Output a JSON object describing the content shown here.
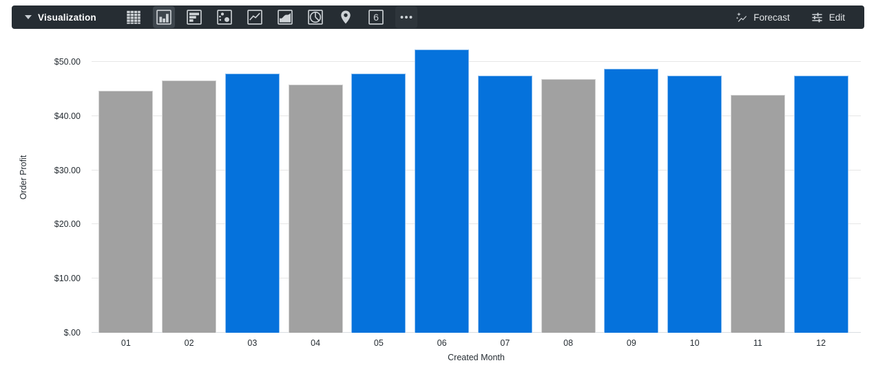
{
  "toolbar": {
    "title": "Visualization",
    "forecast_label": "Forecast",
    "edit_label": "Edit",
    "single_value_icon_text": "6",
    "chart_type_icons": [
      {
        "name": "table",
        "selected": false
      },
      {
        "name": "column",
        "selected": true
      },
      {
        "name": "bar",
        "selected": false
      },
      {
        "name": "scatter",
        "selected": false
      },
      {
        "name": "line",
        "selected": false
      },
      {
        "name": "area",
        "selected": false
      },
      {
        "name": "pie",
        "selected": false
      },
      {
        "name": "map",
        "selected": false
      },
      {
        "name": "single-value",
        "selected": false
      },
      {
        "name": "more",
        "selected": false
      }
    ]
  },
  "colors": {
    "toolbar_bg": "#262D33",
    "selected_icon_bg": "#3E464D",
    "accent_blue": "#0572DC",
    "bar_gray": "#A1A1A1",
    "gridline": "#E6E6E6",
    "axis_text": "#262D33"
  },
  "chart_data": {
    "type": "bar",
    "title": "",
    "xlabel": "Created Month",
    "ylabel": "Order Profit",
    "categories": [
      "01",
      "02",
      "03",
      "04",
      "05",
      "06",
      "07",
      "08",
      "09",
      "10",
      "11",
      "12"
    ],
    "series": [
      {
        "name": "Order Profit",
        "values": [
          44.7,
          46.6,
          47.8,
          45.8,
          47.8,
          52.3,
          47.5,
          46.8,
          48.7,
          47.5,
          43.9,
          47.5
        ]
      }
    ],
    "bar_color_names": [
      "gray",
      "gray",
      "blue",
      "gray",
      "blue",
      "blue",
      "blue",
      "gray",
      "blue",
      "blue",
      "gray",
      "blue"
    ],
    "bar_palette": {
      "gray": "#A1A1A1",
      "blue": "#0572DC"
    },
    "y_ticks": {
      "values": [
        0,
        10,
        20,
        30,
        40,
        50
      ],
      "labels": [
        "$.00",
        "$10.00",
        "$20.00",
        "$30.00",
        "$40.00",
        "$50.00"
      ]
    },
    "ylim": [
      0,
      53.8
    ],
    "grid": "horizontal",
    "legend": "none"
  }
}
